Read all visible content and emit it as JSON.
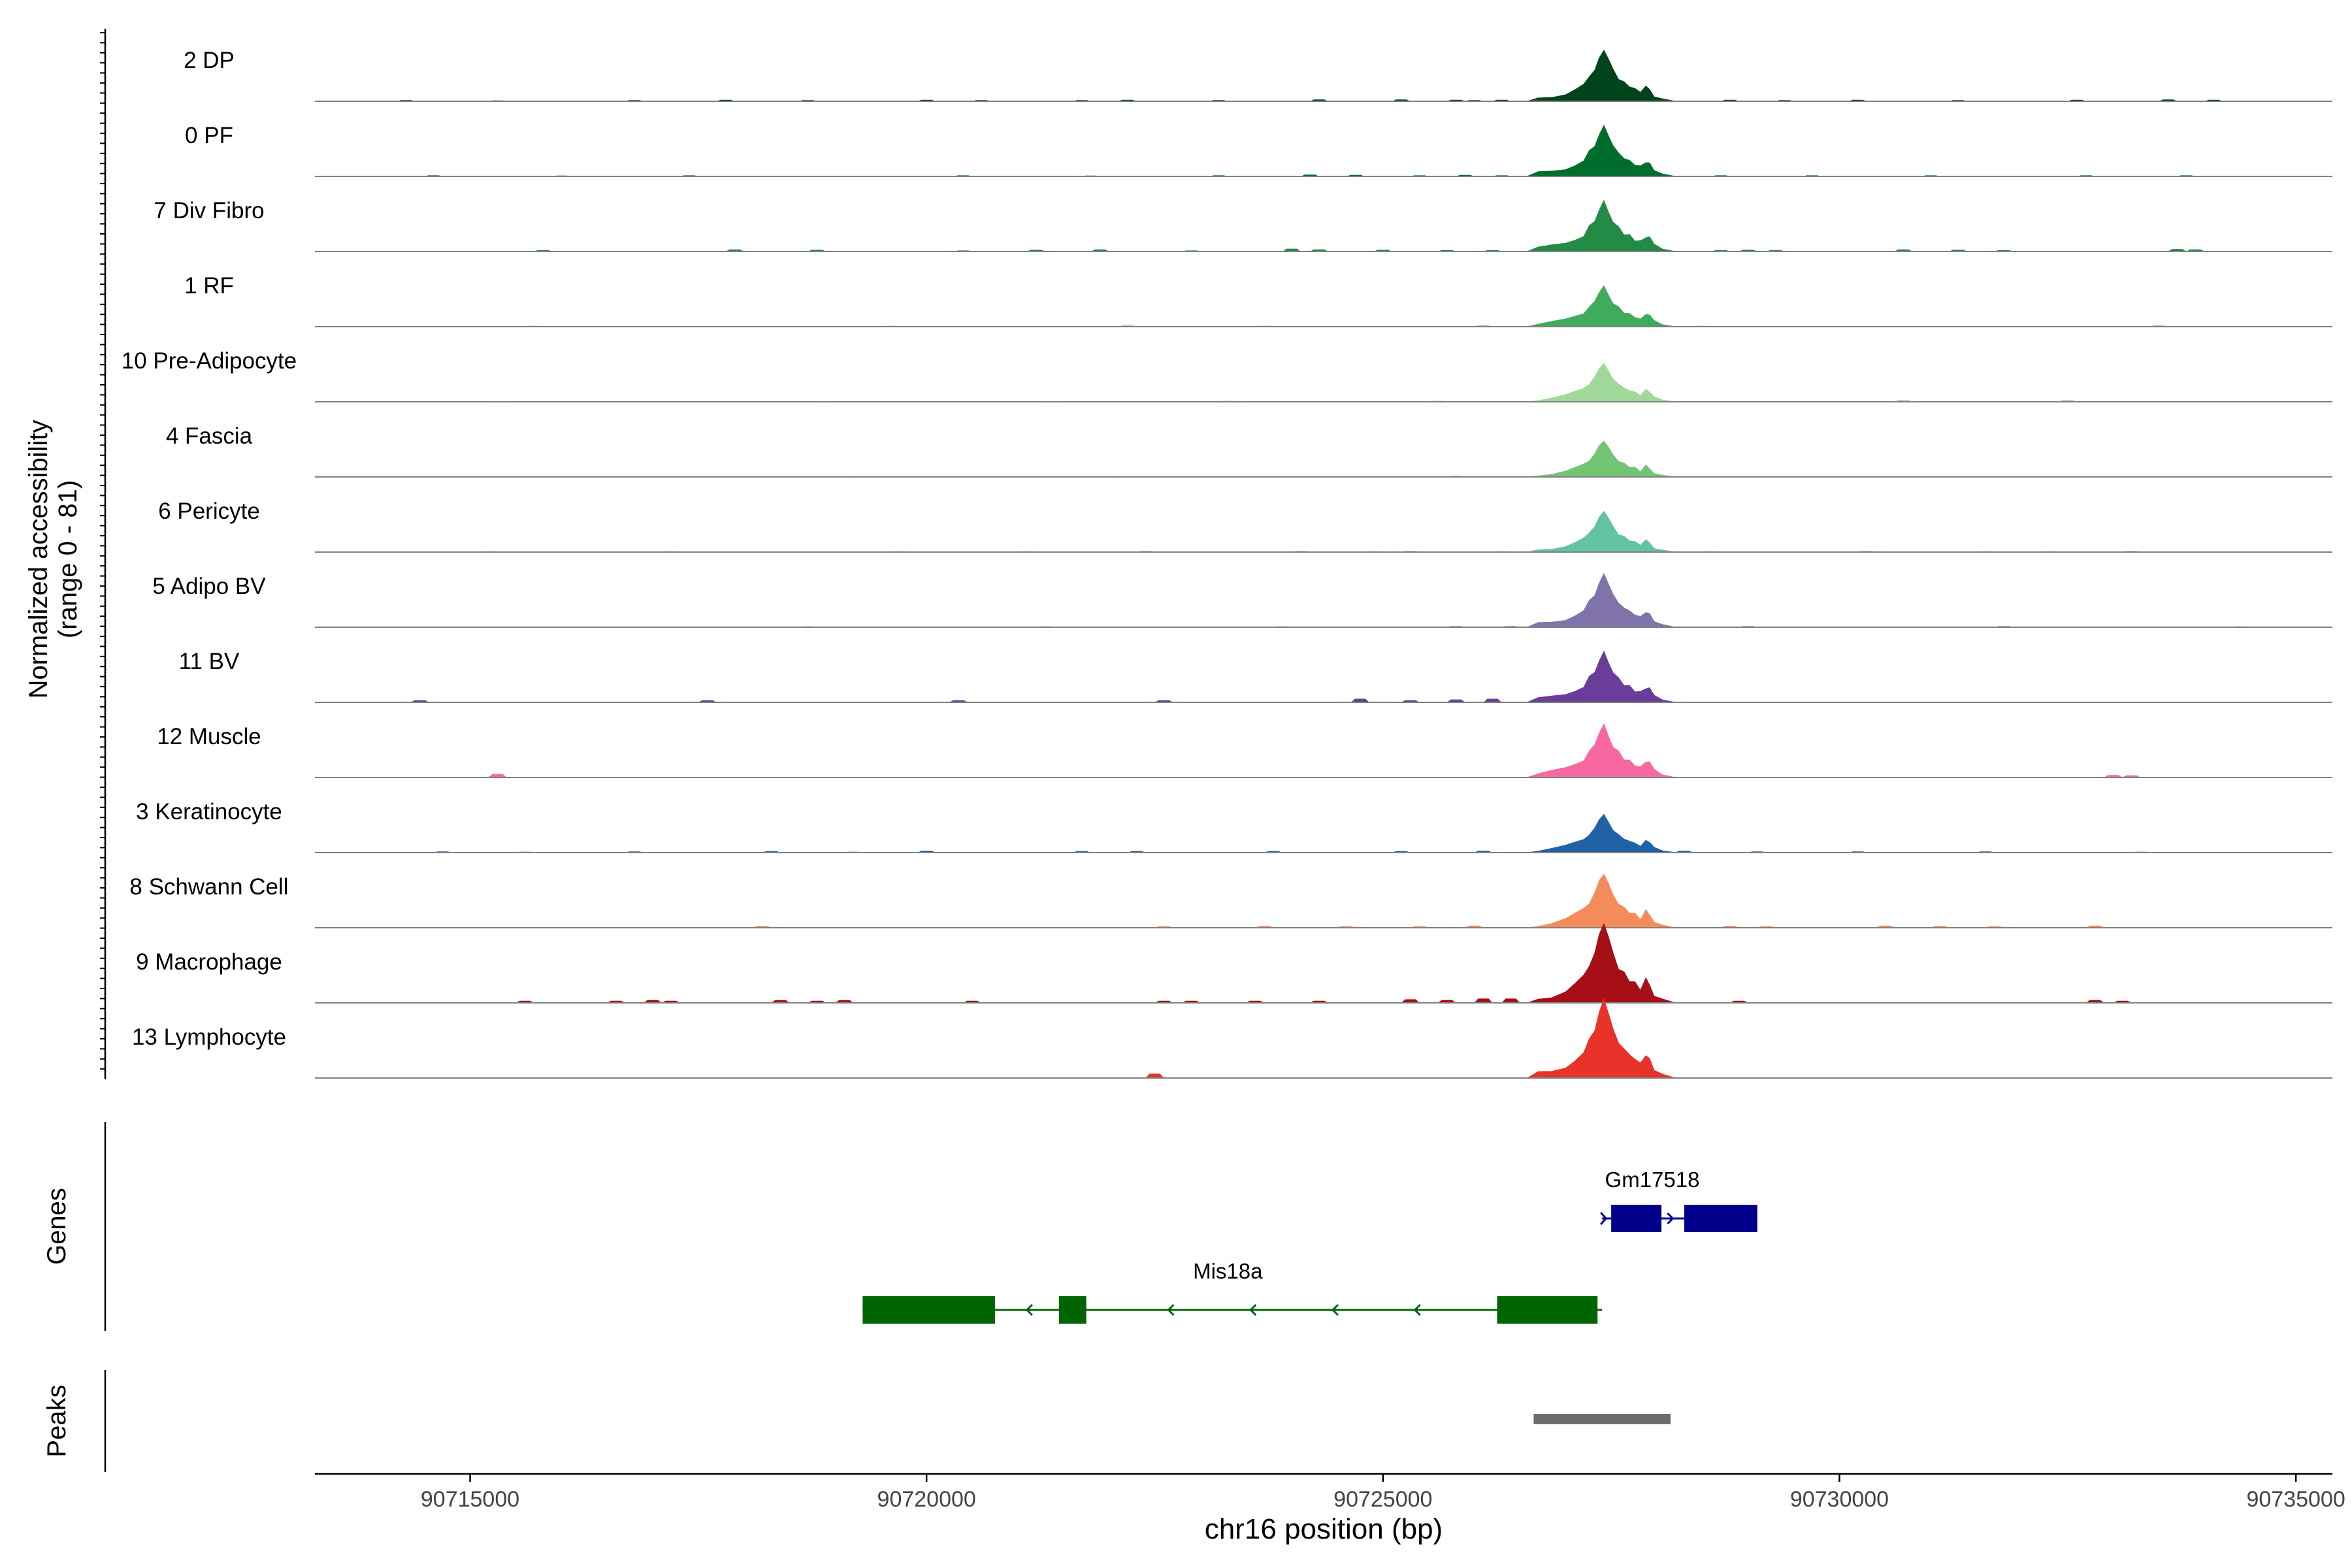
{
  "chart_data": {
    "type": "area",
    "title": "",
    "ylabel": "Normalized accessibility",
    "ylabel_range": "(range 0 - 81)",
    "ylim": [
      0,
      81
    ],
    "xlabel": "chr16 position (bp)",
    "xlim": [
      90713300,
      90735400
    ],
    "xticks": [
      90715000,
      90720000,
      90725000,
      90730000,
      90735000
    ],
    "xtick_labels": [
      "90715000",
      "90720000",
      "90725000",
      "90730000",
      "90735000"
    ],
    "tracks": [
      {
        "name": "2 DP",
        "color": "#00441b",
        "peak_scale": 1.0,
        "background": [
          [
            90714300,
            1.5
          ],
          [
            90715300,
            1.2
          ],
          [
            90716800,
            1.5
          ],
          [
            90717800,
            2
          ],
          [
            90718700,
            1.5
          ],
          [
            90720000,
            2
          ],
          [
            90720600,
            1.5
          ],
          [
            90721700,
            1.5
          ],
          [
            90722200,
            2
          ],
          [
            90723200,
            1.5
          ],
          [
            90724300,
            2.5
          ],
          [
            90725200,
            2.5
          ],
          [
            90725800,
            2
          ],
          [
            90726000,
            1.5
          ],
          [
            90726300,
            2
          ],
          [
            90728800,
            2
          ],
          [
            90729400,
            1.5
          ],
          [
            90730200,
            2
          ],
          [
            90731300,
            1.5
          ],
          [
            90732600,
            2
          ],
          [
            90733600,
            2.5
          ],
          [
            90734100,
            2
          ]
        ]
      },
      {
        "name": "0 PF",
        "color": "#006d2c",
        "peak_scale": 1.0,
        "background": [
          [
            90714600,
            1.5
          ],
          [
            90716000,
            1.2
          ],
          [
            90717400,
            1.5
          ],
          [
            90720400,
            1.5
          ],
          [
            90721800,
            1.2
          ],
          [
            90723200,
            1.5
          ],
          [
            90724200,
            2.5
          ],
          [
            90724700,
            2
          ],
          [
            90725400,
            1.5
          ],
          [
            90725900,
            2
          ],
          [
            90726300,
            1.5
          ],
          [
            90728700,
            1.5
          ],
          [
            90729700,
            1.5
          ],
          [
            90731000,
            1.5
          ],
          [
            90732700,
            1.5
          ],
          [
            90733800,
            1.5
          ]
        ]
      },
      {
        "name": "7 Div Fibro",
        "color": "#238b45",
        "peak_scale": 1.0,
        "background": [
          [
            90715800,
            2
          ],
          [
            90717900,
            3
          ],
          [
            90718800,
            2.5
          ],
          [
            90720400,
            1.5
          ],
          [
            90721200,
            2.5
          ],
          [
            90721900,
            3
          ],
          [
            90722900,
            1.5
          ],
          [
            90724000,
            4
          ],
          [
            90724300,
            3
          ],
          [
            90725000,
            2.5
          ],
          [
            90725700,
            2
          ],
          [
            90726200,
            2
          ],
          [
            90728700,
            2
          ],
          [
            90729000,
            2.5
          ],
          [
            90729300,
            2
          ],
          [
            90730700,
            3
          ],
          [
            90731300,
            2.5
          ],
          [
            90731800,
            2
          ],
          [
            90733700,
            3.5
          ],
          [
            90733900,
            3
          ]
        ]
      },
      {
        "name": "1 RF",
        "color": "#41ab5d",
        "peak_scale": 0.8,
        "background": [
          [
            90715700,
            1.2
          ],
          [
            90719600,
            1.2
          ],
          [
            90722200,
            1.5
          ],
          [
            90723700,
            1.2
          ],
          [
            90726100,
            1.5
          ],
          [
            90728500,
            1.2
          ],
          [
            90733500,
            1.5
          ]
        ]
      },
      {
        "name": "10 Pre-Adipocyte",
        "color": "#a1d99b",
        "peak_scale": 0.75,
        "background": [
          [
            90715300,
            1.2
          ],
          [
            90718900,
            1.2
          ],
          [
            90721400,
            1.2
          ],
          [
            90723300,
            1.5
          ],
          [
            90725600,
            1.5
          ],
          [
            90730700,
            2.5
          ],
          [
            90732500,
            2.5
          ]
        ]
      },
      {
        "name": "4 Fascia",
        "color": "#74c476",
        "peak_scale": 0.7,
        "background": [
          [
            90716400,
            1.2
          ],
          [
            90719100,
            1.2
          ],
          [
            90722000,
            1.2
          ],
          [
            90725800,
            1.5
          ],
          [
            90730000,
            1.2
          ],
          [
            90733400,
            1.2
          ]
        ]
      },
      {
        "name": "6 Pericyte",
        "color": "#66c2a4",
        "peak_scale": 0.8,
        "background": [
          [
            90715200,
            1.2
          ],
          [
            90717200,
            1.2
          ],
          [
            90719700,
            1.2
          ],
          [
            90721100,
            1.2
          ],
          [
            90722400,
            1.5
          ],
          [
            90724100,
            1.5
          ],
          [
            90724900,
            1.2
          ],
          [
            90725300,
            1.5
          ],
          [
            90726300,
            1.2
          ],
          [
            90728600,
            1.2
          ],
          [
            90730300,
            1.5
          ],
          [
            90731600,
            1.2
          ],
          [
            90732300,
            1.2
          ],
          [
            90733200,
            1.5
          ]
        ]
      },
      {
        "name": "5 Adipo BV",
        "color": "#8073ac",
        "peak_scale": 1.05,
        "background": [
          [
            90718700,
            1.2
          ],
          [
            90721300,
            1.2
          ],
          [
            90723900,
            1.2
          ],
          [
            90725800,
            1.5
          ],
          [
            90726400,
            1.5
          ],
          [
            90729000,
            1.5
          ],
          [
            90731800,
            1.5
          ],
          [
            90734400,
            1.2
          ]
        ]
      },
      {
        "name": "11 BV",
        "color": "#6a3d9a",
        "peak_scale": 1.0,
        "background": [
          [
            90714450,
            3
          ],
          [
            90717600,
            3
          ],
          [
            90720350,
            3
          ],
          [
            90722600,
            3
          ],
          [
            90724750,
            5
          ],
          [
            90725300,
            3
          ],
          [
            90725800,
            4
          ],
          [
            90726200,
            5
          ]
        ]
      },
      {
        "name": "12 Muscle",
        "color": "#f768a1",
        "peak_scale": 1.05,
        "background": [
          [
            90715300,
            5
          ],
          [
            90733000,
            3.5
          ],
          [
            90733200,
            3
          ]
        ]
      },
      {
        "name": "3 Keratinocyte",
        "color": "#2161a6",
        "peak_scale": 0.75,
        "background": [
          [
            90714700,
            1.5
          ],
          [
            90715600,
            1.2
          ],
          [
            90716800,
            1.5
          ],
          [
            90718300,
            2
          ],
          [
            90719200,
            1.2
          ],
          [
            90720000,
            2.5
          ],
          [
            90721700,
            2
          ],
          [
            90722300,
            2
          ],
          [
            90723800,
            2
          ],
          [
            90725200,
            2
          ],
          [
            90726100,
            2.5
          ],
          [
            90728300,
            2.5
          ],
          [
            90729100,
            1.5
          ],
          [
            90730200,
            1.5
          ],
          [
            90731600,
            1.5
          ],
          [
            90733300,
            1.2
          ]
        ]
      },
      {
        "name": "8 Schwann Cell",
        "color": "#f58b5a",
        "peak_scale": 1.05,
        "background": [
          [
            90718200,
            2.5
          ],
          [
            90722600,
            2
          ],
          [
            90723700,
            2.5
          ],
          [
            90724600,
            2
          ],
          [
            90725400,
            2
          ],
          [
            90726000,
            3
          ],
          [
            90728800,
            2.5
          ],
          [
            90729200,
            2
          ],
          [
            90730500,
            3
          ],
          [
            90731100,
            2.5
          ],
          [
            90731700,
            2
          ],
          [
            90732800,
            3
          ]
        ]
      },
      {
        "name": "9 Macrophage",
        "color": "#a50f15",
        "peak_scale": 1.55,
        "background": [
          [
            90715600,
            3
          ],
          [
            90716600,
            3
          ],
          [
            90717000,
            4
          ],
          [
            90717200,
            3
          ],
          [
            90718400,
            4
          ],
          [
            90718800,
            3
          ],
          [
            90719100,
            4
          ],
          [
            90720500,
            3
          ],
          [
            90722600,
            3
          ],
          [
            90722900,
            3
          ],
          [
            90723600,
            3
          ],
          [
            90724300,
            3
          ],
          [
            90725300,
            5
          ],
          [
            90725700,
            4
          ],
          [
            90726100,
            6
          ],
          [
            90726400,
            6
          ],
          [
            90728900,
            3
          ],
          [
            90732800,
            4
          ],
          [
            90733100,
            3
          ]
        ]
      },
      {
        "name": "13 Lymphocyte",
        "color": "#e8322a",
        "peak_scale": 1.55,
        "background": [
          [
            90722500,
            6
          ]
        ]
      }
    ],
    "genes": [
      {
        "name": "Gm17518",
        "strand": "+",
        "start": 90727400,
        "end": 90729100,
        "color": "#00008b",
        "exons": [
          [
            90727500,
            90728050
          ],
          [
            90728300,
            90729100
          ]
        ]
      },
      {
        "name": "Mis18a",
        "strand": "-",
        "start": 90719300,
        "end": 90727400,
        "color": "#006400",
        "exons": [
          [
            90719300,
            90720750
          ],
          [
            90721450,
            90721750
          ],
          [
            90726250,
            90727350
          ]
        ]
      }
    ],
    "peaks": [
      {
        "start": 90726650,
        "end": 90728150,
        "color": "#6e6e6e"
      }
    ],
    "panel_labels": {
      "genes": "Genes",
      "peaks": "Peaks"
    }
  }
}
